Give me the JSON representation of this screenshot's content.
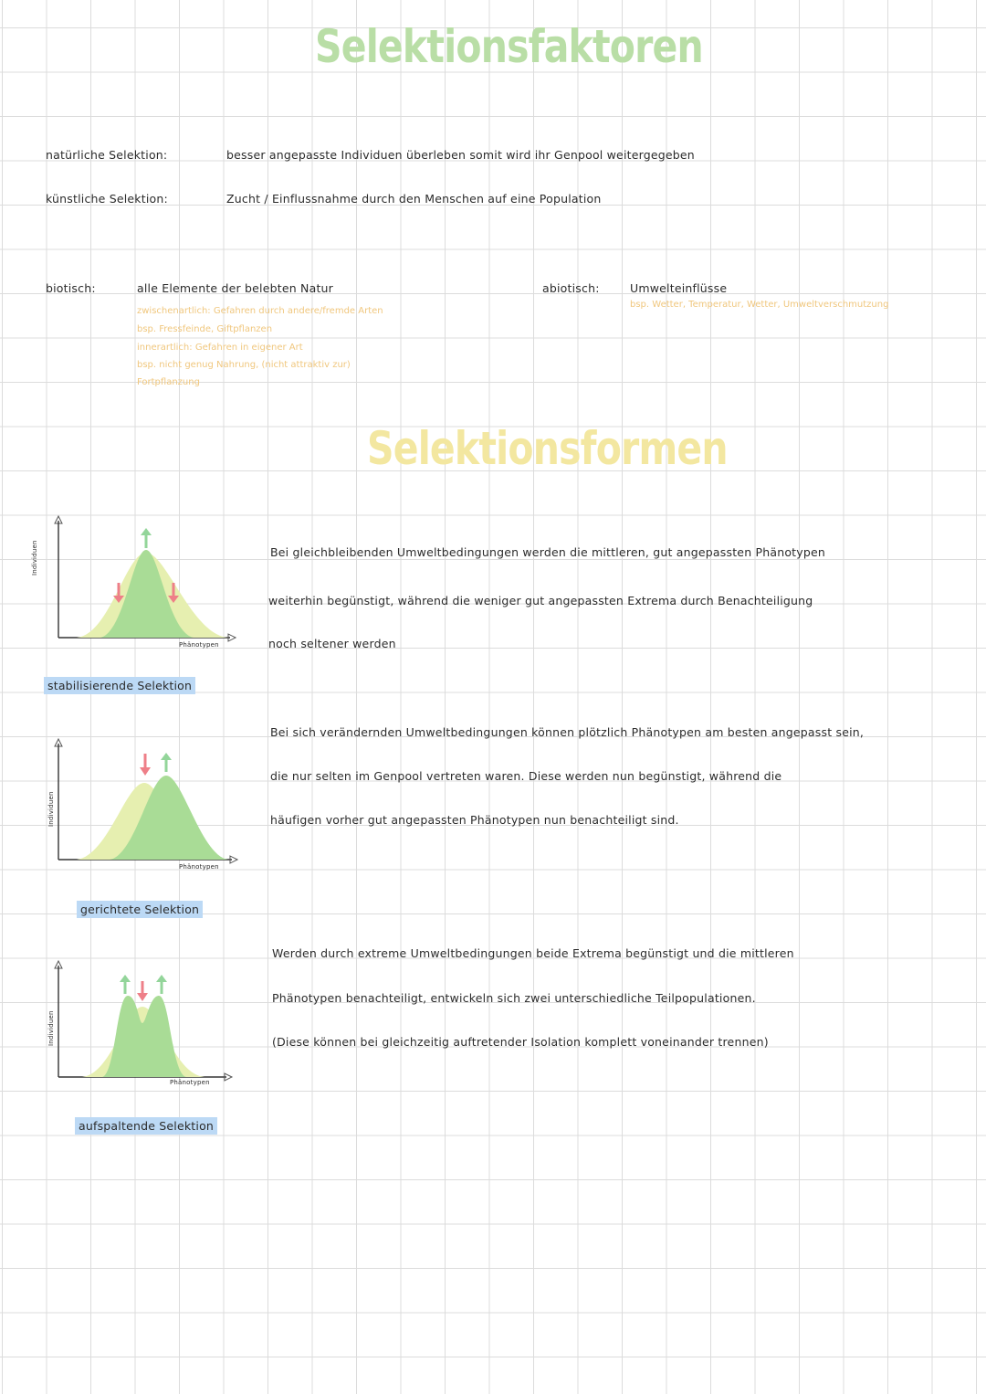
{
  "colors": {
    "title_green": "#b9dea6",
    "title_yellow": "#f3e7a0",
    "annotation_orange": "#f0c77e",
    "highlight_green": "#d8f0cf",
    "highlight_blue": "#bcd9f5",
    "curve_yellow": "#e6efb0",
    "curve_green": "#a9dc96",
    "arrow_red": "#ee7f88",
    "arrow_green": "#93d59a"
  },
  "title": "Selektionsfaktoren",
  "definitions": [
    {
      "term": "natürliche Selektion:",
      "text": "besser angepasste Individuen überleben somit wird ihr Genpool weitergegeben"
    },
    {
      "term": "künstliche Selektion:",
      "text": "Zucht / Einflussnahme durch den Menschen auf eine Population"
    }
  ],
  "biotisch": {
    "term": "biotisch:",
    "text": "alle Elemente der belebten Natur",
    "notes": [
      "zwischenartlich: Gefahren durch andere/fremde Arten",
      "bsp. Fressfeinde, Giftpflanzen",
      "innerartlich: Gefahren in eigener Art",
      "bsp. nicht genug Nahrung, (nicht attraktiv zur)",
      "Fortpflanzung"
    ]
  },
  "abiotisch": {
    "term": "abiotisch:",
    "text": "Umwelteinflüsse",
    "note": "bsp. Wetter, Temperatur, Wetter, Umweltverschmutzung"
  },
  "subtitle": "Selektionsformen",
  "forms": [
    {
      "axis_y": "Individuen",
      "axis_x": "Phänotypen",
      "label": "stabilisierende Selektion",
      "lines": [
        "Bei gleichbleibenden Umweltbedingungen werden die mittleren, gut angepassten Phänotypen",
        "weiterhin begünstigt, während die weniger gut angepassten Extrema durch Benachteiligung",
        "noch seltener werden"
      ]
    },
    {
      "axis_y": "Individuen",
      "axis_x": "Phänotypen",
      "label": "gerichtete Selektion",
      "lines": [
        "Bei sich verändernden Umweltbedingungen können plötzlich Phänotypen am besten angepasst sein,",
        "die nur selten im Genpool vertreten waren. Diese werden nun begünstigt, während die",
        "häufigen vorher gut angepassten Phänotypen nun benachteiligt sind."
      ]
    },
    {
      "axis_y": "Individuen",
      "axis_x": "Phänotypen",
      "label": "aufspaltende Selektion",
      "lines": [
        "Werden durch extreme Umweltbedingungen beide Extrema begünstigt und die mittleren",
        "Phänotypen benachteiligt, entwickeln sich zwei unterschiedliche Teilpopulationen.",
        "(Diese können bei gleichzeitig auftretender Isolation komplett voneinander trennen)"
      ]
    }
  ]
}
